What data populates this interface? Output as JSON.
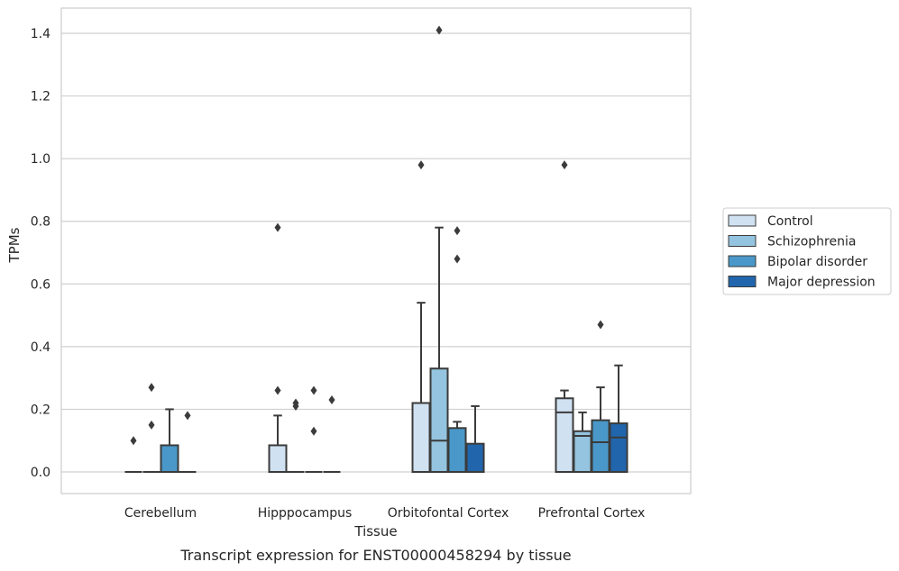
{
  "chart_data": {
    "type": "box",
    "title": "",
    "xlabel": "Tissue",
    "ylabel": "TPMs",
    "caption": "Transcript expression for ENST00000458294 by tissue",
    "ylim": [
      -0.07,
      1.48
    ],
    "yticks": [
      0.0,
      0.2,
      0.4,
      0.6,
      0.8,
      1.0,
      1.2,
      1.4
    ],
    "ytick_labels": [
      "0.0",
      "0.2",
      "0.4",
      "0.6",
      "0.8",
      "1.0",
      "1.2",
      "1.4"
    ],
    "grid": "horizontal",
    "legend_position": "right",
    "categories": [
      "Cerebellum",
      "Hipppocampus",
      "Orbitofontal Cortex",
      "Prefrontal Cortex"
    ],
    "series": [
      {
        "name": "Control",
        "color": "#d0e1f2",
        "boxes": [
          {
            "q1": 0,
            "median": 0,
            "q3": 0,
            "whisker_low": 0,
            "whisker_high": 0,
            "outliers": [
              0.1
            ]
          },
          {
            "q1": 0,
            "median": 0,
            "q3": 0.085,
            "whisker_low": 0,
            "whisker_high": 0.18,
            "outliers": [
              0.26,
              0.78
            ]
          },
          {
            "q1": 0,
            "median": 0,
            "q3": 0.22,
            "whisker_low": 0,
            "whisker_high": 0.54,
            "outliers": [
              0.98
            ]
          },
          {
            "q1": 0,
            "median": 0.19,
            "q3": 0.235,
            "whisker_low": 0,
            "whisker_high": 0.26,
            "outliers": [
              0.98
            ]
          }
        ]
      },
      {
        "name": "Schizophrenia",
        "color": "#94c4df",
        "boxes": [
          {
            "q1": 0,
            "median": 0,
            "q3": 0,
            "whisker_low": 0,
            "whisker_high": 0,
            "outliers": [
              0.15,
              0.27
            ]
          },
          {
            "q1": 0,
            "median": 0,
            "q3": 0,
            "whisker_low": 0,
            "whisker_high": 0,
            "outliers": [
              0.21,
              0.22
            ]
          },
          {
            "q1": 0,
            "median": 0.1,
            "q3": 0.33,
            "whisker_low": 0,
            "whisker_high": 0.78,
            "outliers": [
              1.41
            ]
          },
          {
            "q1": 0,
            "median": 0.115,
            "q3": 0.13,
            "whisker_low": 0,
            "whisker_high": 0.19,
            "outliers": []
          }
        ]
      },
      {
        "name": "Bipolar disorder",
        "color": "#4a98c9",
        "boxes": [
          {
            "q1": 0,
            "median": 0,
            "q3": 0.085,
            "whisker_low": 0,
            "whisker_high": 0.2,
            "outliers": []
          },
          {
            "q1": 0,
            "median": 0,
            "q3": 0,
            "whisker_low": 0,
            "whisker_high": 0,
            "outliers": [
              0.13,
              0.26
            ]
          },
          {
            "q1": 0,
            "median": 0,
            "q3": 0.14,
            "whisker_low": 0,
            "whisker_high": 0.16,
            "outliers": [
              0.68,
              0.77
            ]
          },
          {
            "q1": 0,
            "median": 0.095,
            "q3": 0.165,
            "whisker_low": 0,
            "whisker_high": 0.27,
            "outliers": [
              0.47
            ]
          }
        ]
      },
      {
        "name": "Major depression",
        "color": "#2166ac",
        "boxes": [
          {
            "q1": 0,
            "median": 0,
            "q3": 0,
            "whisker_low": 0,
            "whisker_high": 0,
            "outliers": [
              0.18
            ]
          },
          {
            "q1": 0,
            "median": 0,
            "q3": 0,
            "whisker_low": 0,
            "whisker_high": 0,
            "outliers": [
              0.23
            ]
          },
          {
            "q1": 0,
            "median": 0,
            "q3": 0.09,
            "whisker_low": 0,
            "whisker_high": 0.21,
            "outliers": []
          },
          {
            "q1": 0,
            "median": 0.11,
            "q3": 0.155,
            "whisker_low": 0,
            "whisker_high": 0.34,
            "outliers": []
          }
        ]
      }
    ]
  }
}
